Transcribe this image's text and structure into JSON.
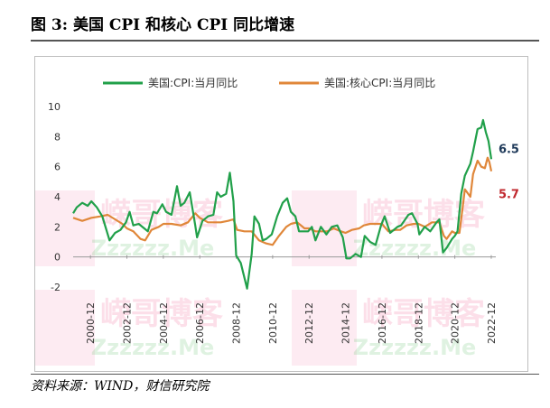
{
  "figure": {
    "title": "图 3:  美国 CPI 和核心 CPI 同比增速",
    "source": "资料来源：WIND，财信研究院"
  },
  "chart_data": {
    "type": "line",
    "ylim": [
      -2,
      10
    ],
    "y_ticks": [
      -2,
      0,
      2,
      4,
      6,
      8,
      10
    ],
    "x_ticks": [
      "2000-12",
      "2002-12",
      "2004-12",
      "2006-12",
      "2008-12",
      "2010-12",
      "2012-12",
      "2014-12",
      "2016-12",
      "2018-12",
      "2020-12",
      "2022-12"
    ],
    "x_range": [
      2000.0,
      2023.2
    ],
    "grid": false,
    "legend_position": "top",
    "series": [
      {
        "name": "美国:CPI:当月同比",
        "color": "#21a04a",
        "end_label": "6.5",
        "end_label_color": "#1f3a5a",
        "points": [
          [
            2000.0,
            2.9
          ],
          [
            2000.2,
            3.3
          ],
          [
            2000.5,
            3.6
          ],
          [
            2000.8,
            3.4
          ],
          [
            2001.0,
            3.7
          ],
          [
            2001.3,
            3.3
          ],
          [
            2001.6,
            2.7
          ],
          [
            2001.8,
            1.9
          ],
          [
            2002.0,
            1.1
          ],
          [
            2002.3,
            1.6
          ],
          [
            2002.6,
            1.8
          ],
          [
            2002.9,
            2.3
          ],
          [
            2003.1,
            3.0
          ],
          [
            2003.3,
            2.1
          ],
          [
            2003.6,
            2.2
          ],
          [
            2003.9,
            1.9
          ],
          [
            2004.1,
            1.7
          ],
          [
            2004.4,
            3.0
          ],
          [
            2004.6,
            2.9
          ],
          [
            2004.9,
            3.5
          ],
          [
            2005.1,
            3.0
          ],
          [
            2005.4,
            2.8
          ],
          [
            2005.7,
            4.7
          ],
          [
            2005.9,
            3.4
          ],
          [
            2006.1,
            3.6
          ],
          [
            2006.4,
            4.3
          ],
          [
            2006.7,
            2.1
          ],
          [
            2006.8,
            1.3
          ],
          [
            2007.1,
            2.4
          ],
          [
            2007.4,
            2.7
          ],
          [
            2007.7,
            2.8
          ],
          [
            2007.9,
            4.3
          ],
          [
            2008.1,
            4.0
          ],
          [
            2008.4,
            4.2
          ],
          [
            2008.6,
            5.6
          ],
          [
            2008.8,
            3.7
          ],
          [
            2008.95,
            0.1
          ],
          [
            2009.2,
            -0.4
          ],
          [
            2009.55,
            -2.1
          ],
          [
            2009.8,
            0.2
          ],
          [
            2009.95,
            2.7
          ],
          [
            2010.2,
            2.2
          ],
          [
            2010.4,
            1.1
          ],
          [
            2010.6,
            1.2
          ],
          [
            2010.9,
            1.5
          ],
          [
            2011.2,
            2.7
          ],
          [
            2011.5,
            3.6
          ],
          [
            2011.75,
            3.9
          ],
          [
            2011.95,
            3.0
          ],
          [
            2012.2,
            2.7
          ],
          [
            2012.4,
            1.7
          ],
          [
            2012.6,
            1.7
          ],
          [
            2012.9,
            1.7
          ],
          [
            2013.1,
            2.0
          ],
          [
            2013.3,
            1.1
          ],
          [
            2013.6,
            2.0
          ],
          [
            2013.9,
            1.5
          ],
          [
            2014.2,
            2.0
          ],
          [
            2014.5,
            2.1
          ],
          [
            2014.8,
            1.3
          ],
          [
            2015.0,
            -0.1
          ],
          [
            2015.2,
            -0.1
          ],
          [
            2015.5,
            0.2
          ],
          [
            2015.8,
            0.0
          ],
          [
            2016.0,
            1.4
          ],
          [
            2016.3,
            1.0
          ],
          [
            2016.6,
            0.8
          ],
          [
            2016.9,
            2.1
          ],
          [
            2017.1,
            2.7
          ],
          [
            2017.4,
            1.6
          ],
          [
            2017.8,
            2.0
          ],
          [
            2018.0,
            2.1
          ],
          [
            2018.4,
            2.8
          ],
          [
            2018.6,
            2.9
          ],
          [
            2018.9,
            2.2
          ],
          [
            2019.0,
            1.5
          ],
          [
            2019.3,
            2.0
          ],
          [
            2019.6,
            1.7
          ],
          [
            2019.95,
            2.3
          ],
          [
            2020.1,
            2.5
          ],
          [
            2020.3,
            0.3
          ],
          [
            2020.5,
            0.6
          ],
          [
            2020.8,
            1.2
          ],
          [
            2020.95,
            1.4
          ],
          [
            2021.1,
            1.7
          ],
          [
            2021.3,
            4.2
          ],
          [
            2021.5,
            5.4
          ],
          [
            2021.8,
            6.2
          ],
          [
            2021.95,
            7.0
          ],
          [
            2022.2,
            8.5
          ],
          [
            2022.4,
            8.6
          ],
          [
            2022.5,
            9.1
          ],
          [
            2022.65,
            8.3
          ],
          [
            2022.8,
            7.7
          ],
          [
            2022.95,
            6.5
          ]
        ]
      },
      {
        "name": "美国:核心CPI:当月同比",
        "color": "#e0873a",
        "end_label": "5.7",
        "end_label_color": "#c0272d",
        "points": [
          [
            2000.0,
            2.6
          ],
          [
            2000.5,
            2.4
          ],
          [
            2001.0,
            2.6
          ],
          [
            2001.5,
            2.7
          ],
          [
            2001.9,
            2.8
          ],
          [
            2002.3,
            2.5
          ],
          [
            2002.7,
            2.2
          ],
          [
            2002.95,
            1.9
          ],
          [
            2003.3,
            1.7
          ],
          [
            2003.7,
            1.2
          ],
          [
            2003.95,
            1.1
          ],
          [
            2004.3,
            1.8
          ],
          [
            2004.7,
            2.0
          ],
          [
            2004.95,
            2.2
          ],
          [
            2005.4,
            2.2
          ],
          [
            2005.9,
            2.1
          ],
          [
            2006.3,
            2.3
          ],
          [
            2006.7,
            2.9
          ],
          [
            2006.95,
            2.6
          ],
          [
            2007.4,
            2.3
          ],
          [
            2007.8,
            2.3
          ],
          [
            2008.1,
            2.3
          ],
          [
            2008.5,
            2.4
          ],
          [
            2008.8,
            2.5
          ],
          [
            2009.0,
            1.8
          ],
          [
            2009.4,
            1.7
          ],
          [
            2009.8,
            1.7
          ],
          [
            2010.2,
            1.1
          ],
          [
            2010.6,
            0.9
          ],
          [
            2010.95,
            0.8
          ],
          [
            2011.3,
            1.4
          ],
          [
            2011.7,
            2.0
          ],
          [
            2011.95,
            2.2
          ],
          [
            2012.3,
            2.3
          ],
          [
            2012.7,
            1.9
          ],
          [
            2012.95,
            1.9
          ],
          [
            2013.3,
            1.7
          ],
          [
            2013.7,
            1.7
          ],
          [
            2013.95,
            1.7
          ],
          [
            2014.3,
            1.9
          ],
          [
            2014.7,
            1.7
          ],
          [
            2014.95,
            1.6
          ],
          [
            2015.3,
            1.8
          ],
          [
            2015.7,
            1.9
          ],
          [
            2015.95,
            2.1
          ],
          [
            2016.3,
            2.2
          ],
          [
            2016.7,
            2.2
          ],
          [
            2016.95,
            2.2
          ],
          [
            2017.3,
            1.7
          ],
          [
            2017.7,
            1.8
          ],
          [
            2017.95,
            1.8
          ],
          [
            2018.3,
            2.1
          ],
          [
            2018.7,
            2.2
          ],
          [
            2018.95,
            2.2
          ],
          [
            2019.3,
            2.0
          ],
          [
            2019.7,
            2.3
          ],
          [
            2020.1,
            2.3
          ],
          [
            2020.35,
            1.4
          ],
          [
            2020.5,
            1.2
          ],
          [
            2020.8,
            1.7
          ],
          [
            2020.95,
            1.6
          ],
          [
            2021.2,
            1.6
          ],
          [
            2021.35,
            3.0
          ],
          [
            2021.5,
            4.5
          ],
          [
            2021.8,
            4.0
          ],
          [
            2021.95,
            5.5
          ],
          [
            2022.2,
            6.4
          ],
          [
            2022.4,
            6.0
          ],
          [
            2022.6,
            5.9
          ],
          [
            2022.75,
            6.6
          ],
          [
            2022.85,
            6.3
          ],
          [
            2022.95,
            5.7
          ]
        ]
      }
    ]
  },
  "watermark": {
    "lines": [
      "嵘哥博客",
      "Zzzzzz.Me"
    ],
    "pink": "#ef3e7b",
    "green": "#3cb54a"
  }
}
